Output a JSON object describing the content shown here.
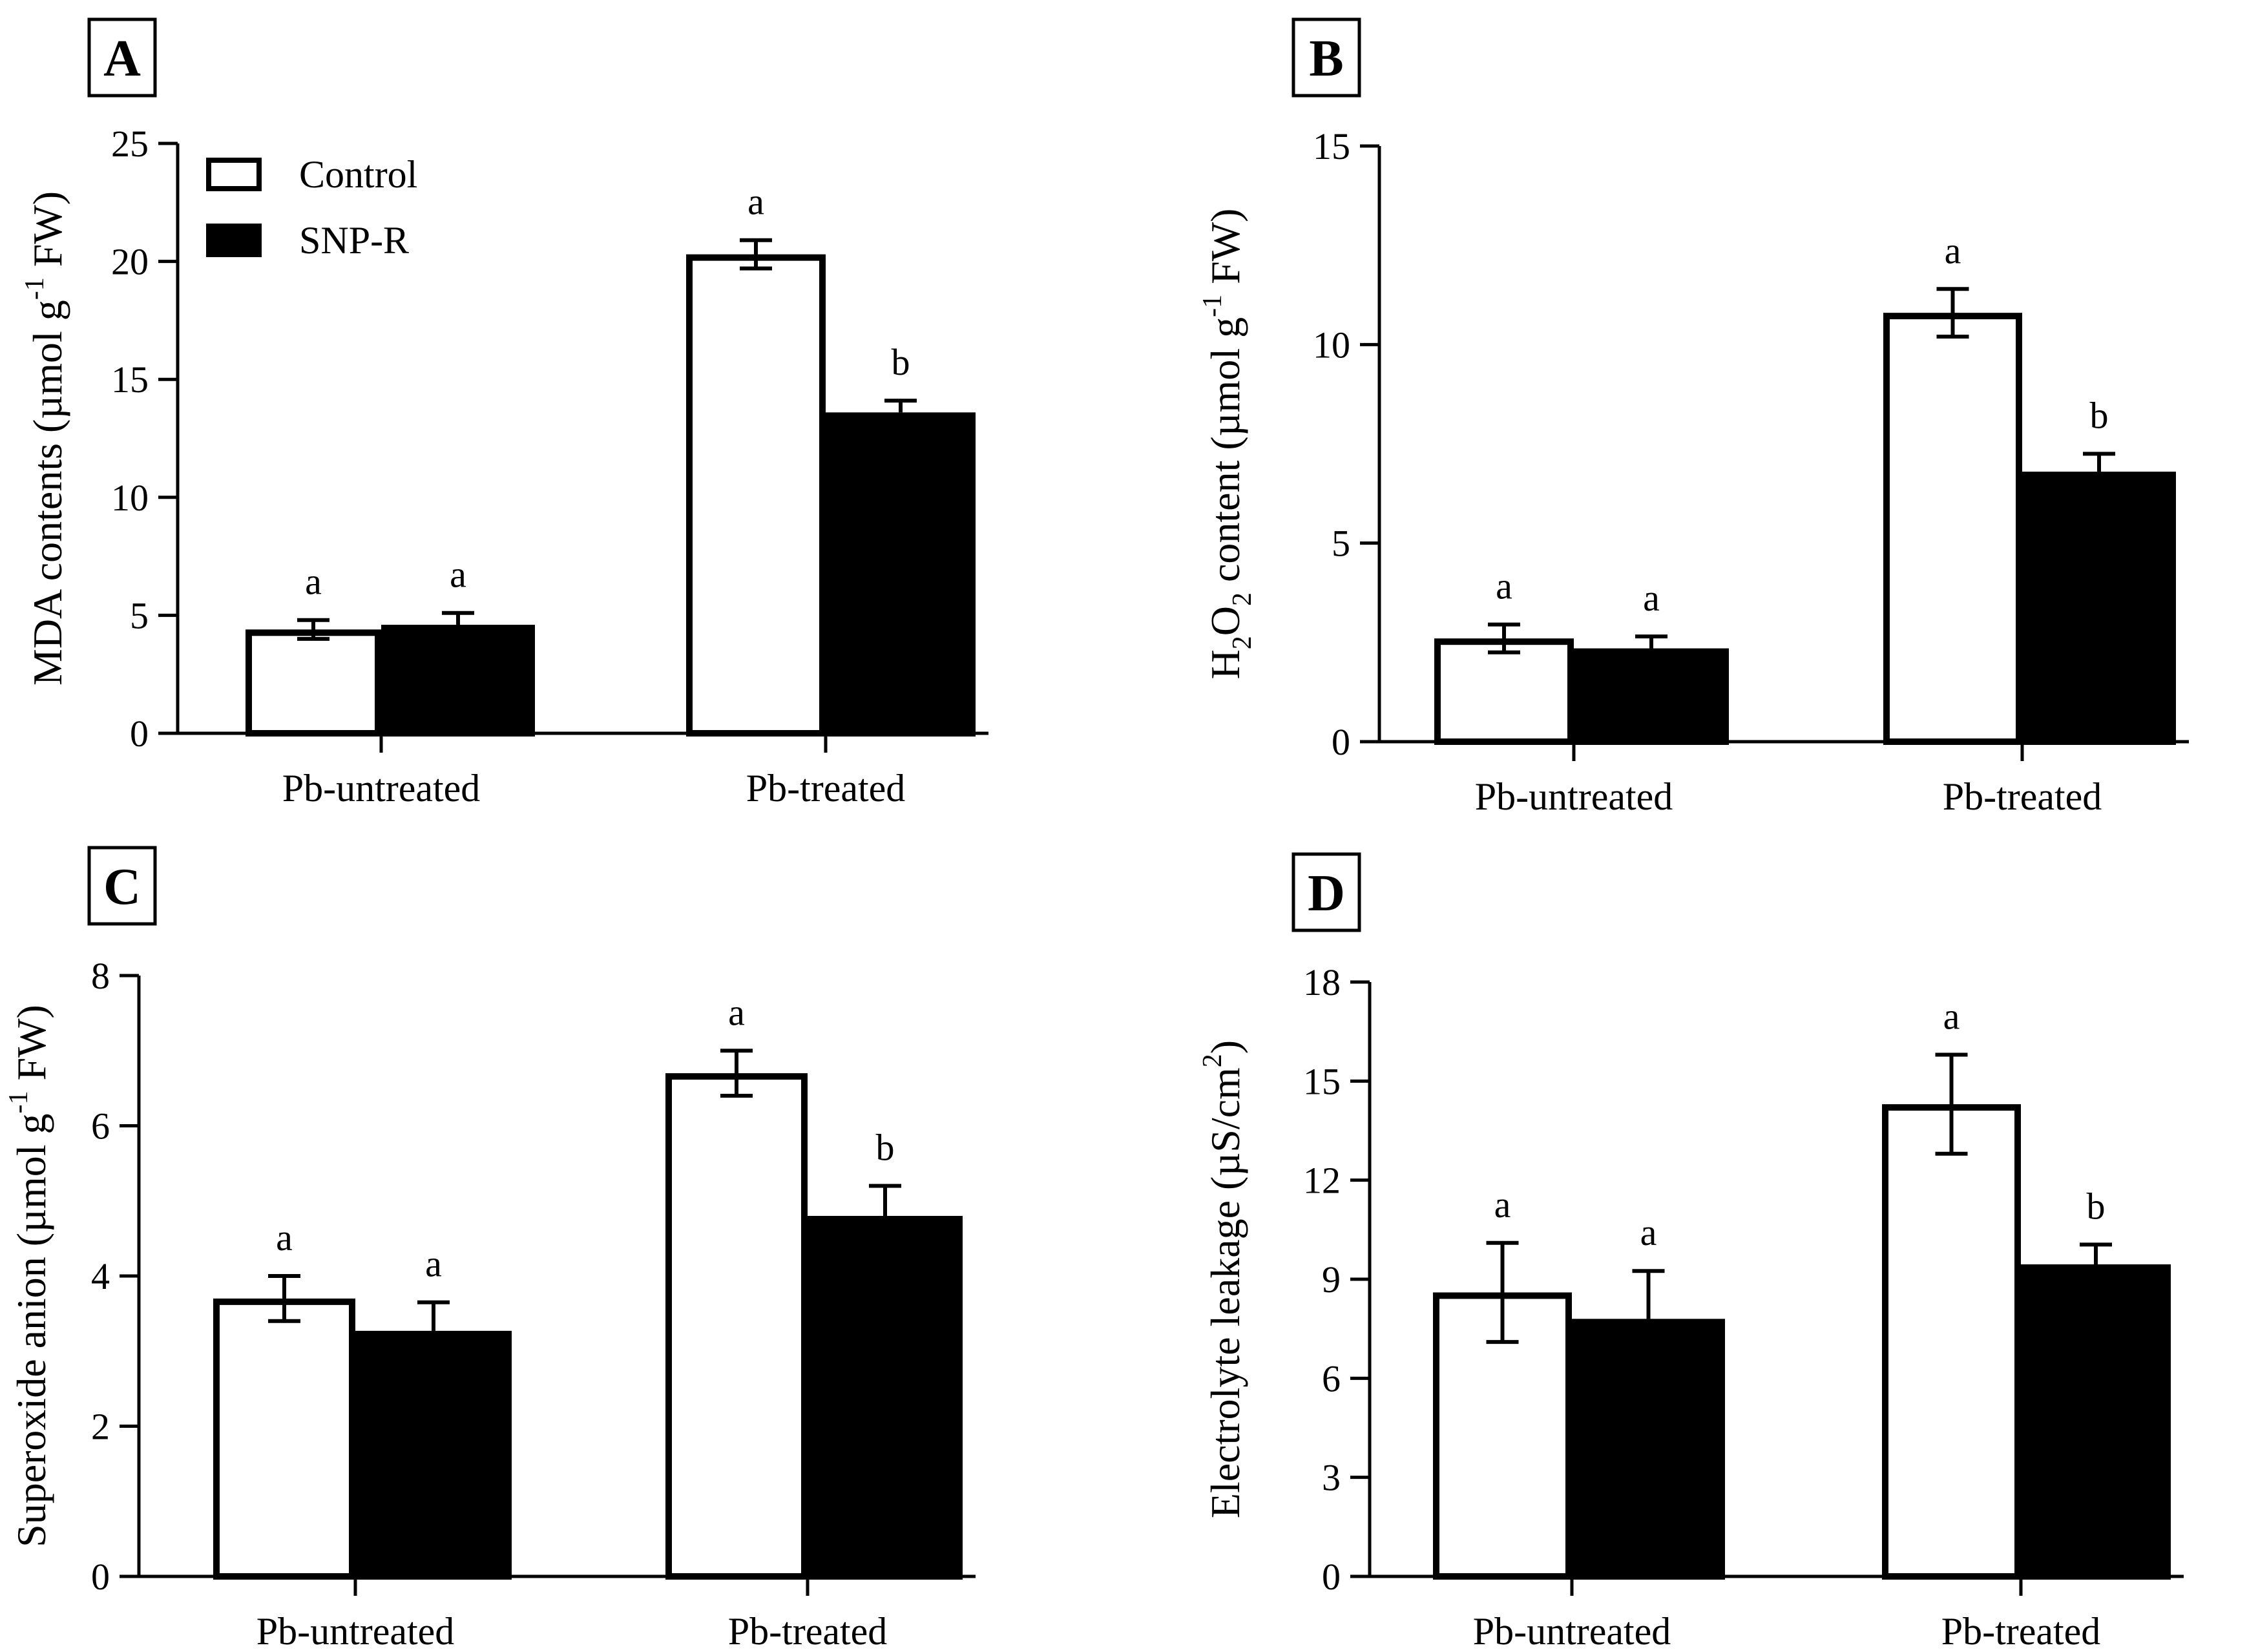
{
  "legend": [
    {
      "label": "Control",
      "fill": "#ffffff"
    },
    {
      "label": "SNP-R",
      "fill": "#000000"
    }
  ],
  "colors": {
    "ink": "#000000",
    "control_fill": "#ffffff",
    "snp_fill": "#000000"
  },
  "chart_data": [
    {
      "panel": "A",
      "type": "bar",
      "ylabel": "MDA contents (µmol g",
      "ylabel_sup": "-1",
      "ylabel_tail": " FW)",
      "categories": [
        "Pb-untreated",
        "Pb-treated"
      ],
      "ylim": [
        0,
        25
      ],
      "yticks": [
        "0",
        "5",
        "10",
        "15",
        "20",
        "25"
      ],
      "series": [
        {
          "name": "Control",
          "values": [
            4.4,
            20.3
          ],
          "errors": [
            0.4,
            0.6
          ],
          "letters": [
            "a",
            "a"
          ]
        },
        {
          "name": "SNP-R",
          "values": [
            4.6,
            13.6
          ],
          "errors": [
            0.5,
            0.5
          ],
          "letters": [
            "a",
            "b"
          ]
        }
      ]
    },
    {
      "panel": "B",
      "type": "bar",
      "ylabel_pre": "H",
      "ylabel_sub1": "2",
      "ylabel_mid": "O",
      "ylabel_sub2": "2",
      "ylabel": " content (µmol g",
      "ylabel_sup": "-1",
      "ylabel_tail": " FW)",
      "categories": [
        "Pb-untreated",
        "Pb-treated"
      ],
      "ylim": [
        0,
        15
      ],
      "yticks": [
        "0",
        "5",
        "10",
        "15"
      ],
      "series": [
        {
          "name": "Control",
          "values": [
            2.6,
            10.8
          ],
          "errors": [
            0.35,
            0.6
          ],
          "letters": [
            "a",
            "a"
          ]
        },
        {
          "name": "SNP-R",
          "values": [
            2.35,
            6.8
          ],
          "errors": [
            0.3,
            0.45
          ],
          "letters": [
            "a",
            "b"
          ]
        }
      ]
    },
    {
      "panel": "C",
      "type": "bar",
      "ylabel": "Superoxide anion (µmol g",
      "ylabel_sup": "-1",
      "ylabel_tail": " FW)",
      "categories": [
        "Pb-untreated",
        "Pb-treated"
      ],
      "ylim": [
        0,
        8
      ],
      "yticks": [
        "0",
        "2",
        "4",
        "6",
        "8"
      ],
      "series": [
        {
          "name": "Control",
          "values": [
            3.7,
            6.7
          ],
          "errors": [
            0.3,
            0.3
          ],
          "letters": [
            "a",
            "a"
          ]
        },
        {
          "name": "SNP-R",
          "values": [
            3.27,
            4.8
          ],
          "errors": [
            0.38,
            0.4
          ],
          "letters": [
            "a",
            "b"
          ]
        }
      ]
    },
    {
      "panel": "D",
      "type": "bar",
      "ylabel": "Electrolyte leakage (µS/cm",
      "ylabel_sup": "2",
      "ylabel_tail": ")",
      "categories": [
        "Pb-untreated",
        "Pb-treated"
      ],
      "ylim": [
        0,
        18
      ],
      "yticks": [
        "0",
        "3",
        "6",
        "9",
        "12",
        "15",
        "18"
      ],
      "series": [
        {
          "name": "Control",
          "values": [
            8.6,
            14.3
          ],
          "errors": [
            1.5,
            1.5
          ],
          "letters": [
            "a",
            "a"
          ]
        },
        {
          "name": "SNP-R",
          "values": [
            7.8,
            9.45
          ],
          "errors": [
            1.45,
            0.6
          ],
          "letters": [
            "a",
            "b"
          ]
        }
      ]
    }
  ]
}
